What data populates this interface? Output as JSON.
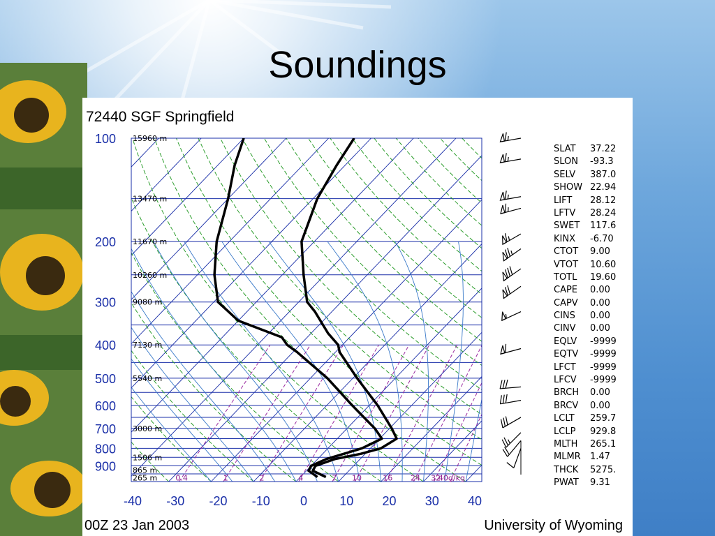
{
  "slide": {
    "title": "Soundings"
  },
  "chart_data": {
    "type": "line",
    "title": "72440 SGF Springfield",
    "footer_left": "00Z 23 Jan 2003",
    "footer_right": "University of Wyoming",
    "xlabel": "",
    "ylabel": "",
    "x_ticks": [
      "-40",
      "-30",
      "-20",
      "-10",
      "0",
      "10",
      "20",
      "30",
      "40"
    ],
    "xlim": [
      -40,
      40
    ],
    "y_scale": "log",
    "ylim": [
      1000,
      100
    ],
    "pressure_ticks": [
      "100",
      "200",
      "300",
      "400",
      "500",
      "600",
      "700",
      "800",
      "900"
    ],
    "height_labels": [
      {
        "p": 100,
        "label": "15960 m"
      },
      {
        "p": 150,
        "label": "13470 m"
      },
      {
        "p": 200,
        "label": "11670 m"
      },
      {
        "p": 250,
        "label": "10260 m"
      },
      {
        "p": 300,
        "label": "9080 m"
      },
      {
        "p": 400,
        "label": "7130 m"
      },
      {
        "p": 500,
        "label": "5540 m"
      },
      {
        "p": 700,
        "label": "3000 m"
      },
      {
        "p": 850,
        "label": "1506 m"
      },
      {
        "p": 925,
        "label": "865 m"
      },
      {
        "p": 975,
        "label": "265 m"
      }
    ],
    "mixing_ratio_labels": [
      "0.4",
      "1",
      "2",
      "4",
      "7",
      "10",
      "16",
      "24",
      "32",
      "40g/kg"
    ],
    "series": [
      {
        "values": [
          {
            "p": 970,
            "t": 6
          },
          {
            "p": 930,
            "t": 1.5
          },
          {
            "p": 900,
            "t": 1
          },
          {
            "p": 860,
            "t": 4
          },
          {
            "p": 830,
            "t": 9
          },
          {
            "p": 800,
            "t": 12.5
          },
          {
            "p": 750,
            "t": 14
          },
          {
            "p": 700,
            "t": 10.5
          },
          {
            "p": 600,
            "t": 2
          },
          {
            "p": 500,
            "t": -9
          },
          {
            "p": 420,
            "t": -19
          },
          {
            "p": 400,
            "t": -21
          },
          {
            "p": 370,
            "t": -26
          },
          {
            "p": 320,
            "t": -34
          },
          {
            "p": 300,
            "t": -38
          },
          {
            "p": 250,
            "t": -45
          },
          {
            "p": 200,
            "t": -53
          },
          {
            "p": 150,
            "t": -59
          },
          {
            "p": 120,
            "t": -62
          },
          {
            "p": 100,
            "t": -64
          }
        ]
      },
      {
        "values": [
          {
            "p": 970,
            "t": 4
          },
          {
            "p": 930,
            "t": 0.5
          },
          {
            "p": 900,
            "t": 0
          },
          {
            "p": 860,
            "t": 2
          },
          {
            "p": 830,
            "t": 5
          },
          {
            "p": 800,
            "t": 8
          },
          {
            "p": 750,
            "t": 10.5
          },
          {
            "p": 700,
            "t": 6.5
          },
          {
            "p": 600,
            "t": -4
          },
          {
            "p": 500,
            "t": -16
          },
          {
            "p": 420,
            "t": -29
          },
          {
            "p": 400,
            "t": -33
          },
          {
            "p": 380,
            "t": -36
          },
          {
            "p": 340,
            "t": -50
          },
          {
            "p": 300,
            "t": -59
          },
          {
            "p": 250,
            "t": -66
          },
          {
            "p": 200,
            "t": -73
          },
          {
            "p": 150,
            "t": -80
          },
          {
            "p": 120,
            "t": -86
          },
          {
            "p": 100,
            "t": -90
          }
        ]
      }
    ],
    "wind_barbs": [
      {
        "p": 100,
        "dir": 260,
        "kt": 65
      },
      {
        "p": 115,
        "dir": 260,
        "kt": 65
      },
      {
        "p": 148,
        "dir": 260,
        "kt": 65
      },
      {
        "p": 160,
        "dir": 255,
        "kt": 65
      },
      {
        "p": 190,
        "dir": 240,
        "kt": 65
      },
      {
        "p": 210,
        "dir": 235,
        "kt": 75
      },
      {
        "p": 240,
        "dir": 235,
        "kt": 80
      },
      {
        "p": 270,
        "dir": 235,
        "kt": 70
      },
      {
        "p": 320,
        "dir": 245,
        "kt": 55
      },
      {
        "p": 410,
        "dir": 255,
        "kt": 60
      },
      {
        "p": 530,
        "dir": 265,
        "kt": 30
      },
      {
        "p": 580,
        "dir": 260,
        "kt": 30
      },
      {
        "p": 650,
        "dir": 240,
        "kt": 30
      },
      {
        "p": 720,
        "dir": 225,
        "kt": 25
      },
      {
        "p": 760,
        "dir": 220,
        "kt": 20
      },
      {
        "p": 800,
        "dir": 200,
        "kt": 10
      }
    ],
    "indices": [
      {
        "key": "SLAT",
        "value": "37.22"
      },
      {
        "key": "SLON",
        "value": "-93.3"
      },
      {
        "key": "SELV",
        "value": "387.0"
      },
      {
        "key": "SHOW",
        "value": "22.94"
      },
      {
        "key": "LIFT",
        "value": "28.12"
      },
      {
        "key": "LFTV",
        "value": "28.24"
      },
      {
        "key": "SWET",
        "value": "117.6"
      },
      {
        "key": "KINX",
        "value": "-6.70"
      },
      {
        "key": "CTOT",
        "value": "9.00"
      },
      {
        "key": "VTOT",
        "value": "10.60"
      },
      {
        "key": "TOTL",
        "value": "19.60"
      },
      {
        "key": "CAPE",
        "value": "0.00"
      },
      {
        "key": "CAPV",
        "value": "0.00"
      },
      {
        "key": "CINS",
        "value": "0.00"
      },
      {
        "key": "CINV",
        "value": "0.00"
      },
      {
        "key": "EQLV",
        "value": "-9999"
      },
      {
        "key": "EQTV",
        "value": "-9999"
      },
      {
        "key": "LFCT",
        "value": "-9999"
      },
      {
        "key": "LFCV",
        "value": "-9999"
      },
      {
        "key": "BRCH",
        "value": "0.00"
      },
      {
        "key": "BRCV",
        "value": "0.00"
      },
      {
        "key": "LCLT",
        "value": "259.7"
      },
      {
        "key": "LCLP",
        "value": "929.8"
      },
      {
        "key": "MLTH",
        "value": "265.1"
      },
      {
        "key": "MLMR",
        "value": "1.47"
      },
      {
        "key": "THCK",
        "value": "5275."
      },
      {
        "key": "PWAT",
        "value": "9.31"
      }
    ],
    "colors": {
      "isobar": "#1a2fa8",
      "isotherm": "#1a2fa8",
      "dry_adiabat": "#2e9e2e",
      "moist_adiabat": "#3a7ac9",
      "mixing_ratio": "#9a2aa0",
      "profile": "#000000"
    }
  }
}
